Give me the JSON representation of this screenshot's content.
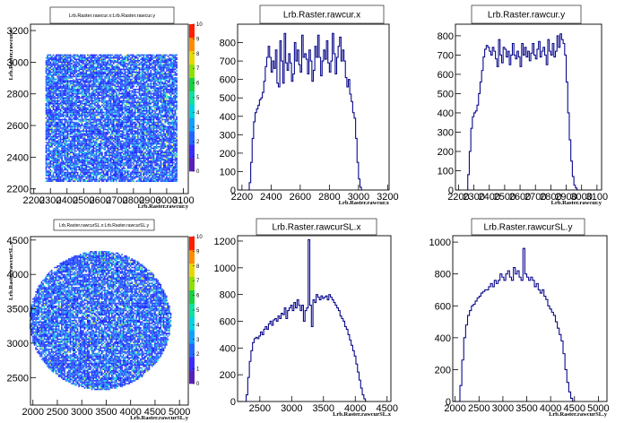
{
  "chart_data": [
    {
      "id": "p1",
      "type": "heatmap",
      "title": "Lrb.Raster.rawcur.x:Lrb.Raster.rawcur.y",
      "xlabel": "Lrb.Raster.rawcur.y",
      "ylabel": "Lrb.Raster.rawcur.x",
      "xlim": [
        2180,
        3130
      ],
      "ylim": [
        2170,
        3240
      ],
      "x_ticks": [
        {
          "v": 2200,
          "t": "2200"
        },
        {
          "v": 2300,
          "t": "2300"
        },
        {
          "v": 2400,
          "t": "2400"
        },
        {
          "v": 2500,
          "t": "2500"
        },
        {
          "v": 2600,
          "t": "2600"
        },
        {
          "v": 2700,
          "t": "2700"
        },
        {
          "v": 2800,
          "t": "2800"
        },
        {
          "v": 2900,
          "t": "2900"
        },
        {
          "v": 3000,
          "t": "3000"
        },
        {
          "v": 3100,
          "t": "3100"
        }
      ],
      "y_ticks": [
        {
          "v": 2200,
          "t": "2200"
        },
        {
          "v": 2400,
          "t": "2400"
        },
        {
          "v": 2600,
          "t": "2600"
        },
        {
          "v": 2800,
          "t": "2800"
        },
        {
          "v": 3000,
          "t": "3000"
        },
        {
          "v": 3200,
          "t": "3200"
        }
      ],
      "region": {
        "shape": "rect",
        "x": [
          2270,
          3060
        ],
        "y": [
          2250,
          3050
        ]
      },
      "zlim": [
        0,
        10
      ],
      "z_ticks": [
        0,
        1,
        2,
        3,
        4,
        5,
        6,
        7,
        8,
        9,
        10
      ]
    },
    {
      "id": "p2",
      "type": "histogram",
      "title": "Lrb.Raster.rawcur.x",
      "xlabel": "Lrb.Raster.rawcur.x",
      "xlim": [
        2170,
        3210
      ],
      "ylim": [
        0,
        900
      ],
      "x_ticks": [
        {
          "v": 2200,
          "t": "2200"
        },
        {
          "v": 2400,
          "t": "2400"
        },
        {
          "v": 2600,
          "t": "2600"
        },
        {
          "v": 2800,
          "t": "2800"
        },
        {
          "v": 3000,
          "t": "3000"
        },
        {
          "v": 3200,
          "t": "3200"
        }
      ],
      "y_ticks": [
        {
          "v": 0,
          "t": "0"
        },
        {
          "v": 100,
          "t": "100"
        },
        {
          "v": 200,
          "t": "200"
        },
        {
          "v": 300,
          "t": "300"
        },
        {
          "v": 400,
          "t": "400"
        },
        {
          "v": 500,
          "t": "500"
        },
        {
          "v": 600,
          "t": "600"
        },
        {
          "v": 700,
          "t": "700"
        },
        {
          "v": 800,
          "t": "800"
        }
      ],
      "x_start": 2240,
      "bin_width": 10,
      "counts": [
        0,
        40,
        150,
        280,
        370,
        420,
        440,
        460,
        490,
        500,
        530,
        590,
        670,
        720,
        780,
        720,
        640,
        700,
        660,
        760,
        580,
        560,
        810,
        700,
        580,
        850,
        690,
        650,
        740,
        690,
        590,
        630,
        800,
        700,
        760,
        680,
        640,
        840,
        720,
        740,
        710,
        630,
        760,
        700,
        590,
        650,
        780,
        720,
        840,
        720,
        620,
        700,
        760,
        710,
        810,
        690,
        640,
        700,
        850,
        740,
        630,
        720,
        780,
        830,
        700,
        760,
        700,
        610,
        560,
        600,
        520,
        480,
        420,
        390,
        280,
        150,
        60,
        15,
        0
      ]
    },
    {
      "id": "p3",
      "type": "histogram",
      "title": "Lrb.Raster.rawcur.y",
      "xlabel": "Lrb.Raster.rawcur.y",
      "xlim": [
        2180,
        3130
      ],
      "ylim": [
        0,
        860
      ],
      "x_ticks": [
        {
          "v": 2200,
          "t": "2200"
        },
        {
          "v": 2300,
          "t": "2300"
        },
        {
          "v": 2400,
          "t": "2400"
        },
        {
          "v": 2500,
          "t": "2500"
        },
        {
          "v": 2600,
          "t": "2600"
        },
        {
          "v": 2700,
          "t": "2700"
        },
        {
          "v": 2800,
          "t": "2800"
        },
        {
          "v": 2900,
          "t": "2900"
        },
        {
          "v": 3000,
          "t": "3000"
        },
        {
          "v": 3100,
          "t": "3100"
        }
      ],
      "y_ticks": [
        {
          "v": 0,
          "t": "0"
        },
        {
          "v": 100,
          "t": "100"
        },
        {
          "v": 200,
          "t": "200"
        },
        {
          "v": 300,
          "t": "300"
        },
        {
          "v": 400,
          "t": "400"
        },
        {
          "v": 500,
          "t": "500"
        },
        {
          "v": 600,
          "t": "600"
        },
        {
          "v": 700,
          "t": "700"
        },
        {
          "v": 800,
          "t": "800"
        }
      ],
      "x_start": 2250,
      "bin_width": 10,
      "counts": [
        0,
        80,
        200,
        320,
        380,
        400,
        410,
        440,
        500,
        560,
        620,
        690,
        730,
        750,
        740,
        720,
        700,
        740,
        720,
        680,
        640,
        780,
        700,
        660,
        740,
        730,
        690,
        720,
        650,
        700,
        760,
        700,
        680,
        720,
        690,
        640,
        760,
        700,
        740,
        690,
        720,
        670,
        710,
        760,
        700,
        680,
        730,
        770,
        690,
        720,
        740,
        700,
        650,
        780,
        720,
        700,
        760,
        690,
        720,
        800,
        740,
        810,
        780,
        760,
        700,
        560,
        400,
        260,
        150,
        70,
        25,
        10,
        0
      ]
    },
    {
      "id": "p4",
      "type": "heatmap",
      "title": "Lrb.Raster.rawcurSL.x:Lrb.Raster.rawcurSL.y",
      "xlabel": "Lrb.Raster.rawcurSL.y",
      "ylabel": "Lrb.Raster.rawcurSL.x",
      "xlim": [
        1950,
        5180
      ],
      "ylim": [
        2100,
        4550
      ],
      "x_ticks": [
        {
          "v": 2000,
          "t": "2000"
        },
        {
          "v": 2500,
          "t": "2500"
        },
        {
          "v": 3000,
          "t": "3000"
        },
        {
          "v": 3500,
          "t": "3500"
        },
        {
          "v": 4000,
          "t": "4000"
        },
        {
          "v": 4500,
          "t": "4500"
        },
        {
          "v": 5000,
          "t": "5000"
        }
      ],
      "y_ticks": [
        {
          "v": 2500,
          "t": "2500"
        },
        {
          "v": 3000,
          "t": "3000"
        },
        {
          "v": 3500,
          "t": "3500"
        },
        {
          "v": 4000,
          "t": "4000"
        },
        {
          "v": 4500,
          "t": "4500"
        }
      ],
      "region": {
        "shape": "ellipse",
        "cx": 3380,
        "cy": 3330,
        "rx": 1450,
        "ry": 1010
      },
      "zlim": [
        0,
        10
      ],
      "z_ticks": [
        0,
        1,
        2,
        3,
        4,
        5,
        6,
        7,
        8,
        9,
        10
      ]
    },
    {
      "id": "p5",
      "type": "histogram",
      "title": "Lrb.Raster.rawcurSL.x",
      "xlabel": "Lrb.Raster.rawcurSL.x",
      "xlim": [
        2150,
        4560
      ],
      "ylim": [
        0,
        1240
      ],
      "x_ticks": [
        {
          "v": 2500,
          "t": "2500"
        },
        {
          "v": 3000,
          "t": "3000"
        },
        {
          "v": 3500,
          "t": "3500"
        },
        {
          "v": 4000,
          "t": "4000"
        },
        {
          "v": 4500,
          "t": "4500"
        }
      ],
      "y_ticks": [
        {
          "v": 0,
          "t": "0"
        },
        {
          "v": 200,
          "t": "200"
        },
        {
          "v": 400,
          "t": "400"
        },
        {
          "v": 600,
          "t": "600"
        },
        {
          "v": 800,
          "t": "800"
        },
        {
          "v": 1000,
          "t": "1000"
        },
        {
          "v": 1200,
          "t": "1200"
        }
      ],
      "x_start": 2260,
      "bin_width": 25,
      "counts": [
        0,
        50,
        180,
        300,
        380,
        440,
        470,
        480,
        470,
        490,
        520,
        500,
        540,
        560,
        540,
        580,
        600,
        570,
        610,
        620,
        600,
        640,
        620,
        660,
        650,
        700,
        620,
        680,
        700,
        720,
        680,
        740,
        700,
        760,
        720,
        680,
        720,
        600,
        680,
        700,
        1210,
        720,
        560,
        760,
        740,
        800,
        780,
        760,
        790,
        770,
        780,
        790,
        760,
        800,
        780,
        760,
        740,
        720,
        700,
        680,
        640,
        620,
        600,
        560,
        540,
        500,
        460,
        420,
        380,
        340,
        280,
        220,
        160,
        100,
        50,
        20,
        0
      ]
    },
    {
      "id": "p6",
      "type": "histogram",
      "title": "Lrb.Raster.rawcurSL.y",
      "xlabel": "Lrb.Raster.rawcurSL.y",
      "xlim": [
        1950,
        5180
      ],
      "ylim": [
        0,
        1040
      ],
      "x_ticks": [
        {
          "v": 2000,
          "t": "2000"
        },
        {
          "v": 2500,
          "t": "2500"
        },
        {
          "v": 3000,
          "t": "3000"
        },
        {
          "v": 3500,
          "t": "3500"
        },
        {
          "v": 4000,
          "t": "4000"
        },
        {
          "v": 4500,
          "t": "4500"
        },
        {
          "v": 5000,
          "t": "5000"
        }
      ],
      "y_ticks": [
        {
          "v": 0,
          "t": "0"
        },
        {
          "v": 200,
          "t": "200"
        },
        {
          "v": 400,
          "t": "400"
        },
        {
          "v": 600,
          "t": "600"
        },
        {
          "v": 800,
          "t": "800"
        },
        {
          "v": 1000,
          "t": "1000"
        }
      ],
      "x_start": 2060,
      "bin_width": 40,
      "counts": [
        0,
        100,
        260,
        400,
        480,
        540,
        570,
        600,
        610,
        630,
        650,
        660,
        680,
        690,
        700,
        700,
        720,
        740,
        720,
        760,
        740,
        760,
        800,
        780,
        760,
        800,
        820,
        780,
        760,
        840,
        800,
        820,
        780,
        760,
        960,
        800,
        780,
        760,
        780,
        760,
        720,
        740,
        700,
        680,
        700,
        660,
        640,
        600,
        580,
        560,
        540,
        500,
        460,
        420,
        380,
        300,
        200,
        120,
        60,
        20,
        0
      ]
    }
  ]
}
